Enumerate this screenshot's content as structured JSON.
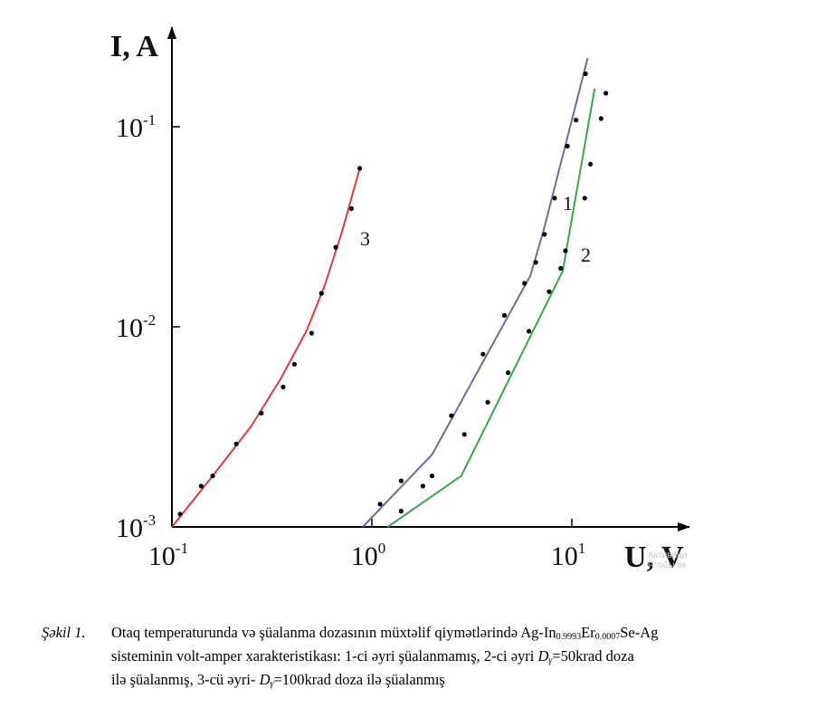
{
  "chart_data": {
    "type": "scatter",
    "xlabel": "U, V",
    "ylabel": "I, A",
    "x_scale": "log",
    "y_scale": "log",
    "xlim": [
      0.1,
      40
    ],
    "ylim": [
      0.001,
      0.2
    ],
    "x_ticks": [
      {
        "value": 0.1,
        "base": "10",
        "exp": "-1"
      },
      {
        "value": 1,
        "base": "10",
        "exp": "0"
      },
      {
        "value": 10,
        "base": "10",
        "exp": "1"
      }
    ],
    "y_ticks": [
      {
        "value": 0.001,
        "base": "10",
        "exp": "-3"
      },
      {
        "value": 0.01,
        "base": "10",
        "exp": "-2"
      },
      {
        "value": 0.1,
        "base": "10",
        "exp": "-1"
      }
    ],
    "grid": false,
    "series": [
      {
        "name": "1",
        "color": "#6f6aa8",
        "line_x": [
          0.9,
          2.0,
          6.2,
          7.2,
          12.0
        ],
        "line_y": [
          0.001,
          0.0023,
          0.018,
          0.03,
          0.22
        ],
        "points_x": [
          1.1,
          1.4,
          2.5,
          3.6,
          4.6,
          5.8,
          6.6,
          7.3,
          8.2,
          9.5,
          10.5,
          11.7
        ],
        "points_y": [
          0.0013,
          0.0017,
          0.0036,
          0.0073,
          0.0114,
          0.0165,
          0.021,
          0.029,
          0.044,
          0.08,
          0.108,
          0.184
        ]
      },
      {
        "name": "2",
        "color": "#3aa64a",
        "line_x": [
          1.2,
          2.8,
          9.0,
          13.0
        ],
        "line_y": [
          0.001,
          0.0018,
          0.019,
          0.155
        ],
        "points_x": [
          1.4,
          1.8,
          2.0,
          2.9,
          3.8,
          4.8,
          6.1,
          7.7,
          8.8,
          9.3,
          11.6,
          12.4,
          14.0,
          14.8
        ],
        "points_y": [
          0.0012,
          0.0016,
          0.0018,
          0.0029,
          0.0042,
          0.0059,
          0.0095,
          0.015,
          0.0196,
          0.024,
          0.044,
          0.065,
          0.11,
          0.147
        ]
      },
      {
        "name": "3",
        "color": "#e03a3a",
        "line_x": [
          0.1,
          0.16,
          0.25,
          0.35,
          0.47,
          0.58,
          0.71,
          0.87
        ],
        "line_y": [
          0.001,
          0.0018,
          0.0032,
          0.0055,
          0.0095,
          0.016,
          0.03,
          0.062
        ],
        "points_x": [
          0.11,
          0.14,
          0.16,
          0.21,
          0.28,
          0.36,
          0.41,
          0.5,
          0.56,
          0.66,
          0.79,
          0.87
        ],
        "points_y": [
          0.00116,
          0.0016,
          0.0018,
          0.0026,
          0.0037,
          0.005,
          0.0065,
          0.0093,
          0.0147,
          0.025,
          0.039,
          0.062
        ]
      }
    ]
  },
  "watermark": {
    "line1": "Активаци",
    "line2": "Чтобы ак"
  },
  "caption": {
    "label": "Şəkil 1.",
    "line1_pre": "Otaq temperaturunda və şüalanma dozasının müxtəlif qiymətlərində Ag-In",
    "line1_sub1": "0.9993",
    "line1_mid": "Er",
    "line1_sub2": "0.0007",
    "line1_post": "Se-Ag",
    "line2_pre": "sisteminin volt-amper xarakteristikası: 1-ci əyri şüalanmamış, 2-ci əyri ",
    "line2_d": "D",
    "line2_gamma": "γ",
    "line2_post": "=50krad doza",
    "line3_pre": "ilə şüalanmış, 3-cü əyri- ",
    "line3_d": "D",
    "line3_gamma": "γ",
    "line3_post": "=100krad doza ilə şüalanmış"
  }
}
